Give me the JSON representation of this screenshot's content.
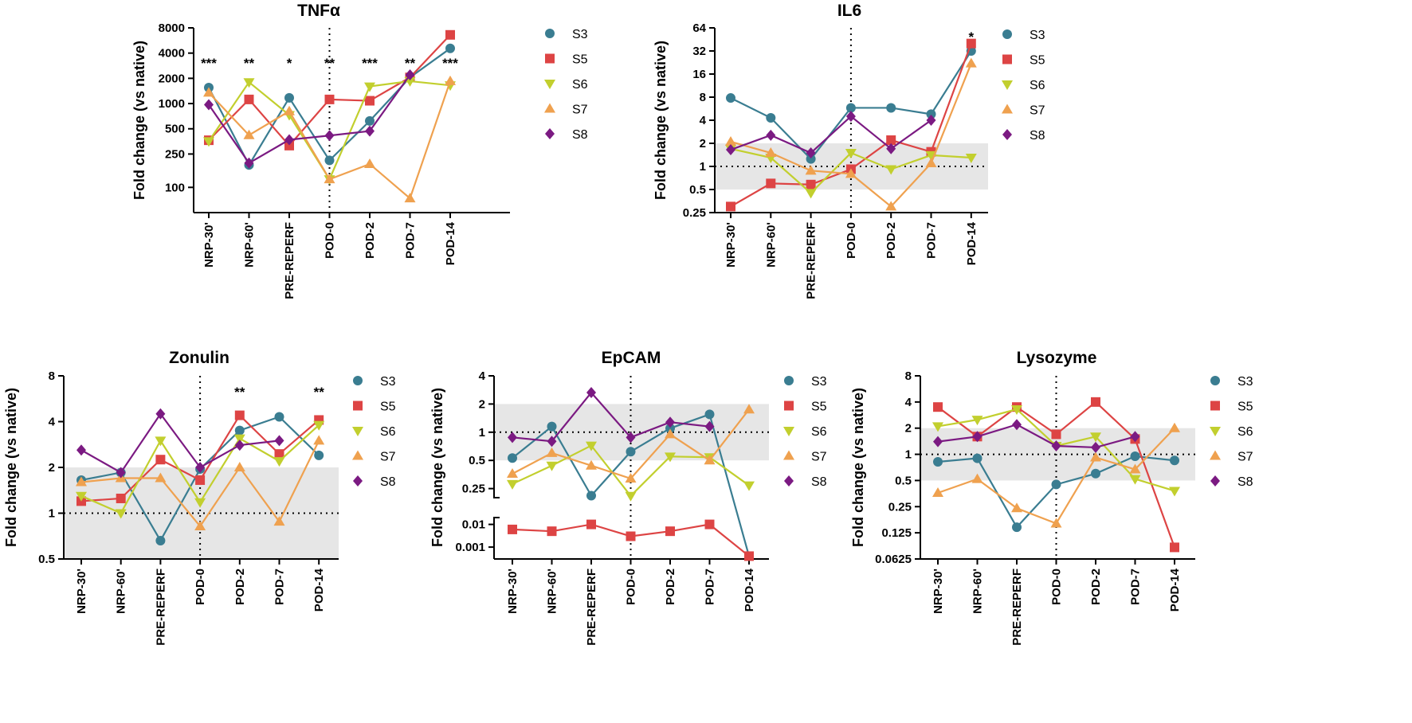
{
  "figure": {
    "categories": [
      "NRP-30'",
      "NRP-60'",
      "PRE-REPERF",
      "POD-0",
      "POD-2",
      "POD-7",
      "POD-14"
    ],
    "series_styles": [
      {
        "name": "S3",
        "color": "#3a7d91",
        "marker": "circle"
      },
      {
        "name": "S5",
        "color": "#dd4444",
        "marker": "square"
      },
      {
        "name": "S6",
        "color": "#c2cf2e",
        "marker": "triangle-down"
      },
      {
        "name": "S7",
        "color": "#efa14f",
        "marker": "triangle-up"
      },
      {
        "name": "S8",
        "color": "#7b1a82",
        "marker": "diamond"
      }
    ]
  },
  "chart_data": [
    {
      "id": "tnfa",
      "type": "line",
      "title": "TNFα",
      "xlabel": "",
      "ylabel": "Fold change (vs native)",
      "yscale": "log2",
      "ylim": [
        50,
        8000
      ],
      "yticks": [
        100,
        250,
        500,
        1000,
        2000,
        4000,
        8000
      ],
      "ytick_labels": [
        "100",
        "250",
        "500",
        "1000",
        "2000",
        "4000",
        "8000"
      ],
      "shaded_band": null,
      "reference_line": null,
      "significance": [
        "***",
        "**",
        "*",
        "**",
        "***",
        "**",
        "***"
      ],
      "categories": [
        "NRP-30'",
        "NRP-60'",
        "PRE-REPERF",
        "POD-0",
        "POD-2",
        "POD-7",
        "POD-14"
      ],
      "series": [
        {
          "name": "S3",
          "values": [
            1550,
            185,
            1170,
            210,
            620,
            2050,
            4550
          ]
        },
        {
          "name": "S5",
          "values": [
            365,
            1120,
            315,
            1120,
            1080,
            2050,
            6600
          ]
        },
        {
          "name": "S6",
          "values": [
            355,
            1800,
            730,
            125,
            1600,
            1850,
            1650
          ]
        },
        {
          "name": "S7",
          "values": [
            1350,
            420,
            810,
            125,
            190,
            74,
            1850
          ]
        },
        {
          "name": "S8",
          "values": [
            970,
            195,
            370,
            415,
            470,
            2200,
            null
          ]
        }
      ]
    },
    {
      "id": "il6",
      "type": "line",
      "title": "IL6",
      "xlabel": "",
      "ylabel": "Fold change (vs native)",
      "yscale": "log2",
      "ylim": [
        0.25,
        64
      ],
      "yticks": [
        0.25,
        0.5,
        1,
        2,
        4,
        8,
        16,
        32,
        64
      ],
      "ytick_labels": [
        "0.25",
        "0.5",
        "1",
        "2",
        "4",
        "8",
        "16",
        "32",
        "64"
      ],
      "shaded_band": [
        0.5,
        2
      ],
      "reference_line": 1,
      "significance": [
        "",
        "",
        "",
        "",
        "",
        "",
        "*"
      ],
      "categories": [
        "NRP-30'",
        "NRP-60'",
        "PRE-REPERF",
        "POD-0",
        "POD-2",
        "POD-7",
        "POD-14"
      ],
      "series": [
        {
          "name": "S3",
          "values": [
            7.8,
            4.3,
            1.25,
            5.8,
            5.8,
            4.8,
            32
          ]
        },
        {
          "name": "S5",
          "values": [
            0.3,
            0.6,
            0.58,
            0.92,
            2.2,
            1.55,
            40
          ]
        },
        {
          "name": "S6",
          "values": [
            1.7,
            1.3,
            0.45,
            1.5,
            0.92,
            1.4,
            1.3
          ]
        },
        {
          "name": "S7",
          "values": [
            2.1,
            1.5,
            0.88,
            0.8,
            0.3,
            1.1,
            22
          ]
        },
        {
          "name": "S8",
          "values": [
            1.65,
            2.55,
            1.5,
            4.5,
            1.7,
            4.0,
            null
          ]
        }
      ]
    },
    {
      "id": "zonulin",
      "type": "line",
      "title": "Zonulin",
      "xlabel": "",
      "ylabel": "Fold change (vs native)",
      "yscale": "log2",
      "ylim": [
        0.5,
        8
      ],
      "yticks": [
        0.5,
        1,
        2,
        4,
        8
      ],
      "ytick_labels": [
        "0.5",
        "1",
        "2",
        "4",
        "8"
      ],
      "shaded_band": [
        0.5,
        2
      ],
      "reference_line": 1,
      "significance": [
        "",
        "",
        "",
        "",
        "**",
        "",
        "**"
      ],
      "categories": [
        "NRP-30'",
        "NRP-60'",
        "PRE-REPERF",
        "POD-0",
        "POD-2",
        "POD-7",
        "POD-14"
      ],
      "series": [
        {
          "name": "S3",
          "values": [
            1.65,
            1.85,
            0.66,
            1.95,
            3.5,
            4.3,
            2.4
          ]
        },
        {
          "name": "S5",
          "values": [
            1.2,
            1.25,
            2.25,
            1.65,
            4.4,
            2.45,
            4.1
          ]
        },
        {
          "name": "S6",
          "values": [
            1.3,
            1.0,
            3.0,
            1.18,
            3.1,
            2.2,
            3.8
          ]
        },
        {
          "name": "S7",
          "values": [
            1.6,
            1.7,
            1.7,
            0.82,
            2.0,
            0.88,
            3.0
          ]
        },
        {
          "name": "S8",
          "values": [
            2.6,
            1.85,
            4.5,
            2.0,
            2.8,
            3.0,
            null
          ]
        }
      ]
    },
    {
      "id": "epcam",
      "type": "line",
      "title": "EpCAM",
      "xlabel": "",
      "ylabel": "Fold change (vs native)",
      "yscale": "log2-broken",
      "ylim_upper": [
        0.2,
        4
      ],
      "ylim_lower": [
        0.0003,
        0.02
      ],
      "yticks_upper": [
        0.25,
        0.5,
        1,
        2,
        4
      ],
      "ytick_labels_upper": [
        "0.25",
        "0.5",
        "1",
        "2",
        "4"
      ],
      "yticks_lower": [
        0.001,
        0.01
      ],
      "ytick_labels_lower": [
        "0.001",
        "0.01"
      ],
      "shaded_band": [
        0.5,
        2
      ],
      "reference_line": 1,
      "significance": [
        "",
        "",
        "",
        "",
        "",
        "",
        ""
      ],
      "categories": [
        "NRP-30'",
        "NRP-60'",
        "PRE-REPERF",
        "POD-0",
        "POD-2",
        "POD-7",
        "POD-14"
      ],
      "series": [
        {
          "name": "S3",
          "values": [
            0.53,
            1.15,
            0.21,
            0.62,
            1.1,
            1.55,
            0.0004
          ]
        },
        {
          "name": "S5",
          "values": [
            0.006,
            0.005,
            0.01,
            0.003,
            0.005,
            0.01,
            0.0004
          ]
        },
        {
          "name": "S6",
          "values": [
            0.28,
            0.44,
            0.72,
            0.18,
            0.55,
            0.54,
            0.27
          ]
        },
        {
          "name": "S7",
          "values": [
            0.36,
            0.6,
            0.44,
            0.32,
            0.95,
            0.5,
            1.75
          ]
        },
        {
          "name": "S8",
          "values": [
            0.88,
            0.8,
            2.65,
            0.88,
            1.28,
            1.15,
            null
          ]
        }
      ]
    },
    {
      "id": "lysozyme",
      "type": "line",
      "title": "Lysozyme",
      "xlabel": "",
      "ylabel": "Fold change (vs native)",
      "yscale": "log2",
      "ylim": [
        0.0625,
        8
      ],
      "yticks": [
        0.0625,
        0.125,
        0.25,
        0.5,
        1,
        2,
        4,
        8
      ],
      "ytick_labels": [
        "0.0625",
        "0.125",
        "0.25",
        "0.5",
        "1",
        "2",
        "4",
        "8"
      ],
      "shaded_band": [
        0.5,
        2
      ],
      "reference_line": 1,
      "significance": [
        "",
        "",
        "",
        "",
        "",
        "",
        ""
      ],
      "categories": [
        "NRP-30'",
        "NRP-60'",
        "PRE-REPERF",
        "POD-0",
        "POD-2",
        "POD-7",
        "POD-14"
      ],
      "series": [
        {
          "name": "S3",
          "values": [
            0.82,
            0.9,
            0.145,
            0.45,
            0.6,
            0.95,
            0.85
          ]
        },
        {
          "name": "S5",
          "values": [
            3.5,
            1.6,
            3.5,
            1.7,
            4.0,
            1.5,
            0.085
          ]
        },
        {
          "name": "S6",
          "values": [
            2.1,
            2.5,
            3.3,
            1.25,
            1.6,
            0.52,
            0.38
          ]
        },
        {
          "name": "S7",
          "values": [
            0.36,
            0.52,
            0.24,
            0.16,
            0.92,
            0.67,
            2.0
          ]
        },
        {
          "name": "S8",
          "values": [
            1.4,
            1.6,
            2.2,
            1.25,
            1.2,
            1.6,
            null
          ]
        }
      ]
    }
  ]
}
